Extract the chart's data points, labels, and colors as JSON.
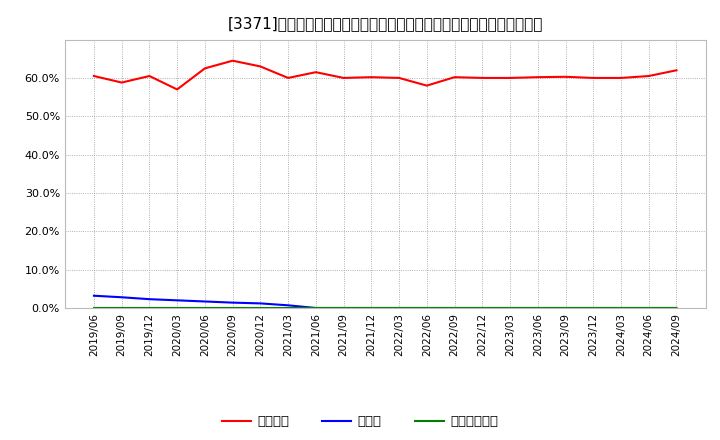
{
  "title": "[3371]　自己資本、のれん、繰延税金資産の総資産に対する比率の推移",
  "x_labels": [
    "2019/06",
    "2019/09",
    "2019/12",
    "2020/03",
    "2020/06",
    "2020/09",
    "2020/12",
    "2021/03",
    "2021/06",
    "2021/09",
    "2021/12",
    "2022/03",
    "2022/06",
    "2022/09",
    "2022/12",
    "2023/03",
    "2023/06",
    "2023/09",
    "2023/12",
    "2024/03",
    "2024/06",
    "2024/09"
  ],
  "equity_ratio": [
    60.5,
    58.8,
    60.5,
    57.0,
    62.5,
    64.5,
    63.0,
    60.0,
    61.5,
    60.0,
    60.2,
    60.0,
    58.0,
    60.2,
    60.0,
    60.0,
    60.2,
    60.3,
    60.0,
    60.0,
    60.5,
    62.0
  ],
  "goodwill_ratio": [
    3.2,
    2.8,
    2.3,
    2.0,
    1.7,
    1.4,
    1.2,
    0.7,
    0.0,
    0.0,
    0.0,
    0.0,
    0.0,
    0.0,
    0.0,
    0.0,
    0.0,
    0.0,
    0.0,
    0.0,
    0.0,
    0.0
  ],
  "deferred_tax_ratio": [
    0.0,
    0.0,
    0.0,
    0.0,
    0.0,
    0.0,
    0.0,
    0.0,
    0.0,
    0.0,
    0.0,
    0.0,
    0.0,
    0.0,
    0.0,
    0.0,
    0.0,
    0.0,
    0.0,
    0.0,
    0.0,
    0.0
  ],
  "equity_color": "#ff0000",
  "goodwill_color": "#0000ff",
  "deferred_tax_color": "#008000",
  "bg_color": "#ffffff",
  "plot_bg_color": "#ffffff",
  "grid_color": "#999999",
  "ylim": [
    0,
    70
  ],
  "yticks": [
    0.0,
    10.0,
    20.0,
    30.0,
    40.0,
    50.0,
    60.0
  ],
  "legend_labels": [
    "自己資本",
    "のれん",
    "繰延税金資産"
  ],
  "title_fontsize": 11,
  "tick_fontsize": 7.5,
  "legend_fontsize": 9.5
}
